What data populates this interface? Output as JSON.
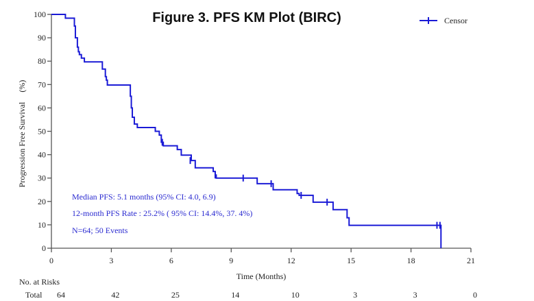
{
  "chart_data": {
    "type": "line",
    "title": "Figure 3. PFS KM Plot (BIRC)",
    "xlabel": "Time (Months)",
    "ylabel": "Progression Free Survival",
    "ylabel_unit": "(%)",
    "xlim": [
      0,
      21
    ],
    "ylim": [
      0,
      100
    ],
    "xticks": [
      0,
      3,
      6,
      9,
      12,
      15,
      18,
      21
    ],
    "yticks": [
      0,
      10,
      20,
      30,
      40,
      50,
      60,
      70,
      80,
      90,
      100
    ],
    "grid": false,
    "legend": {
      "position": "top-right",
      "entries": [
        "Censor"
      ]
    },
    "series_color": "#1a1ad6",
    "steps": [
      [
        0,
        100
      ],
      [
        0.7,
        98.4
      ],
      [
        1.15,
        95
      ],
      [
        1.2,
        90
      ],
      [
        1.3,
        86
      ],
      [
        1.35,
        84
      ],
      [
        1.4,
        82.8
      ],
      [
        1.5,
        81.3
      ],
      [
        1.65,
        79.7
      ],
      [
        2.55,
        76.6
      ],
      [
        2.7,
        73.4
      ],
      [
        2.75,
        71.9
      ],
      [
        2.8,
        69.8
      ],
      [
        3.95,
        65
      ],
      [
        4.0,
        60
      ],
      [
        4.05,
        56
      ],
      [
        4.15,
        53.1
      ],
      [
        4.3,
        51.6
      ],
      [
        5.2,
        50
      ],
      [
        5.4,
        48.4
      ],
      [
        5.5,
        45.3
      ],
      [
        5.6,
        43.8
      ],
      [
        6.3,
        42.2
      ],
      [
        6.5,
        39.8
      ],
      [
        7.0,
        37.5
      ],
      [
        7.2,
        34.4
      ],
      [
        8.1,
        32.8
      ],
      [
        8.2,
        31.3
      ],
      [
        8.25,
        30
      ],
      [
        10.3,
        27.6
      ],
      [
        11.1,
        25
      ],
      [
        12.3,
        23.4
      ],
      [
        12.4,
        22.6
      ],
      [
        13.1,
        19.7
      ],
      [
        14.1,
        16.5
      ],
      [
        14.8,
        13
      ],
      [
        14.9,
        9.8
      ],
      [
        19.5,
        0
      ]
    ],
    "censors": [
      [
        5.55,
        45.3
      ],
      [
        6.95,
        37.5
      ],
      [
        8.2,
        31.3
      ],
      [
        9.6,
        30
      ],
      [
        11.0,
        27.6
      ],
      [
        12.5,
        22.6
      ],
      [
        13.8,
        19.7
      ],
      [
        19.3,
        9.8
      ],
      [
        19.45,
        9.8
      ]
    ],
    "annotations": [
      "Median PFS:   5.1 months   (95% CI: 4.0, 6.9)",
      "12-month PFS Rate   : 25.2% ( 95% CI: 14.4%, 37.  4%)",
      "N=64; 50 Events"
    ],
    "risk_table": {
      "header": "No. at Risks",
      "row_label": "Total",
      "values": [
        64,
        42,
        25,
        14,
        10,
        3,
        3,
        0
      ]
    }
  }
}
